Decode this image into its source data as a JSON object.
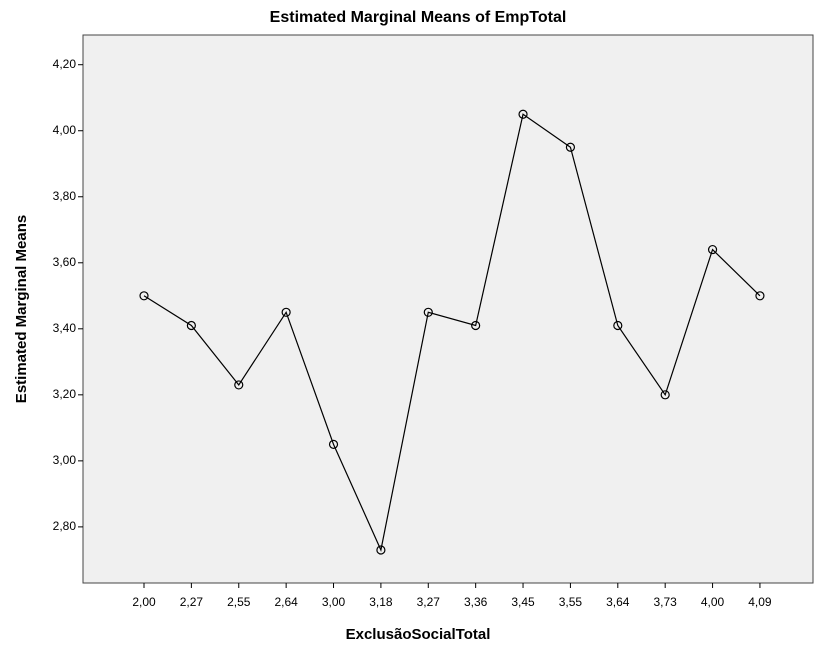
{
  "chart_data": {
    "type": "line",
    "title": "Estimated Marginal Means of EmpTotal",
    "x_label": "ExclusãoSocialTotal",
    "y_label": "Estimated Marginal Means",
    "categories": [
      "2,00",
      "2,27",
      "2,55",
      "2,64",
      "3,00",
      "3,18",
      "3,27",
      "3,36",
      "3,45",
      "3,55",
      "3,64",
      "3,73",
      "4,00",
      "4,09"
    ],
    "values": [
      3.5,
      3.41,
      3.23,
      3.45,
      3.05,
      2.73,
      3.45,
      3.41,
      4.05,
      3.95,
      3.41,
      3.2,
      3.64,
      3.5
    ],
    "color": "#000000",
    "ylim": [
      2.63,
      4.29
    ],
    "yticks": [
      {
        "value": 2.8,
        "label": "2,80"
      },
      {
        "value": 3.0,
        "label": "3,00"
      },
      {
        "value": 3.2,
        "label": "3,20"
      },
      {
        "value": 3.4,
        "label": "3,40"
      },
      {
        "value": 3.6,
        "label": "3,60"
      },
      {
        "value": 3.8,
        "label": "3,80"
      },
      {
        "value": 4.0,
        "label": "4,00"
      },
      {
        "value": 4.2,
        "label": "4,20"
      }
    ]
  }
}
